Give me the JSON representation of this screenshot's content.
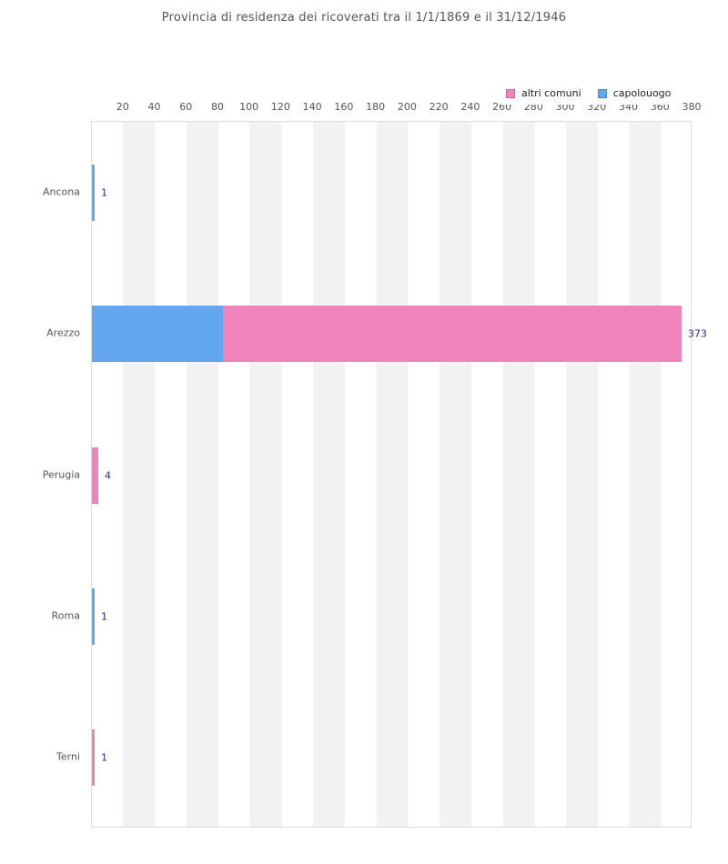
{
  "chart_data": {
    "type": "bar",
    "orientation": "horizontal",
    "stacked": true,
    "title": "Provincia di residenza dei ricoverati tra il 1/1/1869 e il 31/12/1946",
    "categories": [
      "Ancona",
      "Arezzo",
      "Perugia",
      "Roma",
      "Terni"
    ],
    "series": [
      {
        "name": "capolouogo",
        "color": "#62a7f0",
        "values": [
          1,
          83,
          0,
          1,
          0
        ]
      },
      {
        "name": "altri comuni",
        "color": "#f083ba",
        "values": [
          0,
          290,
          4,
          0,
          1
        ]
      }
    ],
    "bar_total_labels": [
      "1",
      "373",
      "4",
      "1",
      "1"
    ],
    "x_ticks": [
      20,
      40,
      60,
      80,
      100,
      120,
      140,
      160,
      180,
      200,
      220,
      240,
      260,
      280,
      300,
      320,
      340,
      360,
      380
    ],
    "xlim": [
      0,
      380
    ],
    "grid": "striped-vertical-bands",
    "band_width_units": 20,
    "band_colors": [
      "#ffffff",
      "#f2f2f2"
    ],
    "legend": {
      "position": "top-right",
      "entries": [
        {
          "label": "altri comuni",
          "color": "#f083ba"
        },
        {
          "label": "capolouogo",
          "color": "#62a7f0"
        }
      ]
    },
    "value_label_color": "#28288e",
    "axis_text_color": "#555555",
    "title_color": "#555555"
  }
}
